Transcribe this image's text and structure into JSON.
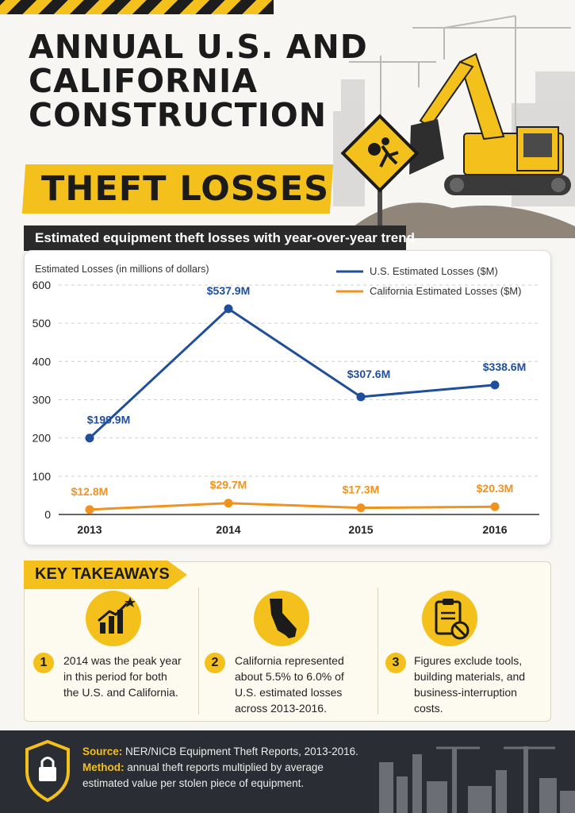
{
  "header": {
    "title_lines": [
      "ANNUAL U.S. AND",
      "CALIFORNIA",
      "CONSTRUCTION"
    ],
    "title_highlight": "THEFT LOSSES",
    "subtitle": "Estimated equipment theft losses with year-over-year trend"
  },
  "colors": {
    "accent": "#f4c01c",
    "dark": "#2a2a2a",
    "us": "#1f4e9b",
    "ca": "#f0921e"
  },
  "icons": [
    "hazard-stripes",
    "excavator",
    "money-thief-sign",
    "growth-chart-icon",
    "california-map-icon",
    "clipboard-no-icon",
    "padlock-shield-icon",
    "city-skyline"
  ],
  "chart_data": {
    "type": "line",
    "ylabel": "Estimated Losses (in millions of dollars)",
    "xlabel": "",
    "categories": [
      "2013",
      "2014",
      "2015",
      "2016"
    ],
    "y_ticks": [
      "0",
      "100",
      "200",
      "300",
      "400",
      "500",
      "600"
    ],
    "ylim": [
      0,
      600
    ],
    "grid": true,
    "legend_position": "top-right",
    "series": [
      {
        "name": "U.S. Estimated Losses ($M)",
        "values": [
          199.9,
          537.9,
          307.6,
          338.6
        ],
        "labels": [
          "$199.9M",
          "$537.9M",
          "$307.6M",
          "$338.6M"
        ],
        "color": "#1f4e9b"
      },
      {
        "name": "California Estimated Losses ($M)",
        "values": [
          12.8,
          29.7,
          17.3,
          20.3
        ],
        "labels": [
          "$12.8M",
          "$29.7M",
          "$17.3M",
          "$20.3M"
        ],
        "color": "#f0921e"
      }
    ]
  },
  "takeaways": {
    "heading": "KEY TAKEAWAYS",
    "items": [
      {
        "number": "1",
        "lines": [
          "2014 was the peak year",
          "in this period for both",
          "the U.S. and California."
        ]
      },
      {
        "number": "2",
        "lines": [
          "California represented",
          "about 5.5% to 6.0% of",
          "U.S. estimated losses",
          "across 2013-2016."
        ]
      },
      {
        "number": "3",
        "lines": [
          "Figures exclude tools,",
          "building materials, and",
          "business-interruption",
          "costs."
        ]
      }
    ]
  },
  "footer": {
    "source_label": "Source:",
    "source_text": "NER/NICB Equipment Theft Reports, 2013-2016.",
    "method_label": "Method:",
    "method_text": "annual theft reports multiplied by average estimated value per stolen piece of equipment."
  }
}
